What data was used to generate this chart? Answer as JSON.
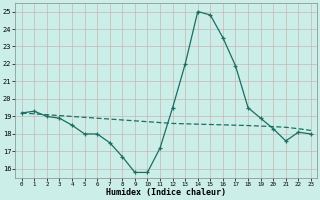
{
  "xlabel": "Humidex (Indice chaleur)",
  "background_color": "#cceee8",
  "grid_color": "#b0d8d2",
  "line_color": "#1a6e62",
  "xlim": [
    -0.5,
    23.5
  ],
  "ylim": [
    15.5,
    25.5
  ],
  "yticks": [
    16,
    17,
    18,
    19,
    20,
    21,
    22,
    23,
    24,
    25
  ],
  "xticks": [
    0,
    1,
    2,
    3,
    4,
    5,
    6,
    7,
    8,
    9,
    10,
    11,
    12,
    13,
    14,
    15,
    16,
    17,
    18,
    19,
    20,
    21,
    22,
    23
  ],
  "series1_x": [
    0,
    1,
    2,
    3,
    4,
    5,
    6,
    7,
    8,
    9,
    10,
    11,
    12,
    13,
    14,
    15,
    16,
    17,
    18,
    19,
    20,
    21,
    22,
    23
  ],
  "series1_y": [
    19.2,
    19.3,
    19.0,
    18.9,
    18.5,
    18.0,
    18.0,
    17.5,
    16.7,
    15.8,
    15.8,
    17.2,
    19.5,
    22.0,
    25.0,
    24.8,
    23.5,
    21.9,
    19.5,
    18.9,
    18.3,
    17.6,
    18.1,
    18.0
  ],
  "series2_x": [
    0,
    1,
    2,
    3,
    4,
    5,
    6,
    7,
    8,
    9,
    10,
    11,
    12,
    13,
    14,
    15,
    16,
    17,
    18,
    19,
    20,
    21,
    22,
    23
  ],
  "series2_y": [
    19.2,
    19.15,
    19.1,
    19.05,
    19.0,
    18.95,
    18.9,
    18.85,
    18.8,
    18.75,
    18.7,
    18.65,
    18.6,
    18.58,
    18.56,
    18.54,
    18.52,
    18.5,
    18.48,
    18.45,
    18.42,
    18.38,
    18.3,
    18.2
  ]
}
